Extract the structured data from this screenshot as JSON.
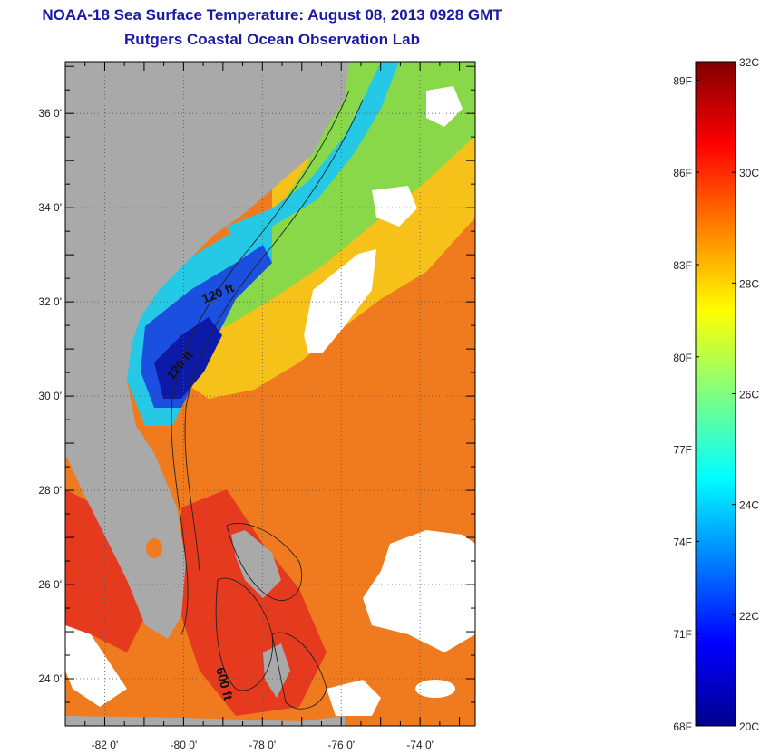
{
  "header": {
    "title": "NOAA-18 Sea Surface Temperature:  August 08, 2013 0928 GMT",
    "subtitle": "Rutgers Coastal Ocean Observation Lab"
  },
  "map": {
    "lat_labels": [
      "36 0'",
      "34 0'",
      "32 0'",
      "30 0'",
      "28 0'",
      "26 0'",
      "24 0'"
    ],
    "lon_labels": [
      "-82 0'",
      "-80 0'",
      "-78 0'",
      "-76 0'",
      "-74 0'"
    ],
    "lat_range": [
      23.0,
      37.1
    ],
    "lon_range": [
      -83.0,
      -72.6
    ],
    "contour_labels": [
      "120 ft",
      "120 ft",
      "600 ft"
    ],
    "colors": {
      "land": "#a9a9a9",
      "cloud": "#ffffff",
      "warm": "#f07a1e",
      "hot": "#e63a1e",
      "mid": "#f6c21a",
      "green": "#88d84a",
      "cyan": "#25c9e6",
      "blue": "#1a4fe0",
      "deep": "#0d1aa8"
    }
  },
  "colorbar": {
    "celsius_labels": [
      "32C",
      "30C",
      "28C",
      "26C",
      "24C",
      "22C",
      "20C"
    ],
    "fahrenheit_labels": [
      "89F",
      "86F",
      "83F",
      "80F",
      "77F",
      "74F",
      "71F",
      "68F"
    ],
    "celsius_range": [
      20,
      32
    ],
    "colors": [
      "#00008f",
      "#0000ff",
      "#0080ff",
      "#00ffff",
      "#80ff80",
      "#ffff00",
      "#ff8000",
      "#ff0000",
      "#800000"
    ]
  }
}
